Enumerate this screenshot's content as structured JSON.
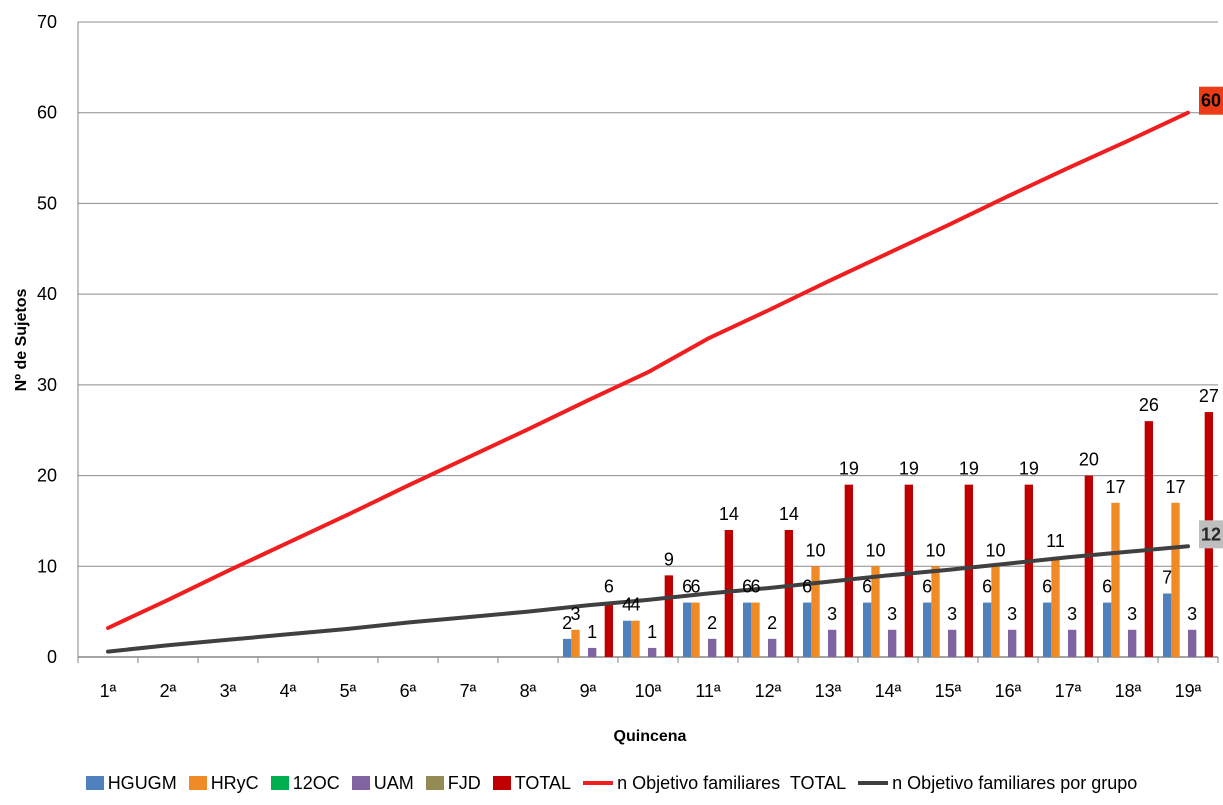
{
  "chart_data": {
    "type": "bar",
    "xlabel": "Quincena",
    "ylabel": "Nº de Sujetos",
    "ylim": [
      0,
      70
    ],
    "yticks": [
      0,
      10,
      20,
      30,
      40,
      50,
      60,
      70
    ],
    "grid": true,
    "legend": "bottom",
    "categories": [
      "1ª",
      "2ª",
      "3ª",
      "4ª",
      "5ª",
      "6ª",
      "7ª",
      "8ª",
      "9ª",
      "10ª",
      "11ª",
      "12ª",
      "13ª",
      "14ª",
      "15ª",
      "16ª",
      "17ª",
      "18ª",
      "19ª"
    ],
    "series": [
      {
        "name": "HGUGM",
        "kind": "bar",
        "color": "#4f81bd",
        "values": [
          null,
          null,
          null,
          null,
          null,
          null,
          null,
          null,
          2,
          4,
          6,
          6,
          6,
          6,
          6,
          6,
          6,
          6,
          7
        ]
      },
      {
        "name": "HRyC",
        "kind": "bar",
        "color": "#f08a24",
        "values": [
          null,
          null,
          null,
          null,
          null,
          null,
          null,
          null,
          3,
          4,
          6,
          6,
          10,
          10,
          10,
          10,
          11,
          17,
          17
        ]
      },
      {
        "name": "12OC",
        "kind": "bar",
        "color": "#00b050",
        "values": [
          null,
          null,
          null,
          null,
          null,
          null,
          null,
          null,
          null,
          null,
          null,
          null,
          null,
          null,
          null,
          null,
          null,
          null,
          null
        ]
      },
      {
        "name": "UAM",
        "kind": "bar",
        "color": "#8064a2",
        "values": [
          null,
          null,
          null,
          null,
          null,
          null,
          null,
          null,
          1,
          1,
          2,
          2,
          3,
          3,
          3,
          3,
          3,
          3,
          3
        ]
      },
      {
        "name": "FJD",
        "kind": "bar",
        "color": "#948a54",
        "values": [
          null,
          null,
          null,
          null,
          null,
          null,
          null,
          null,
          null,
          null,
          null,
          null,
          null,
          null,
          null,
          null,
          null,
          null,
          null
        ]
      },
      {
        "name": "TOTAL",
        "kind": "bar",
        "color": "#c00000",
        "values": [
          null,
          null,
          null,
          null,
          null,
          null,
          null,
          null,
          6,
          9,
          14,
          14,
          19,
          19,
          19,
          19,
          20,
          26,
          27
        ]
      },
      {
        "name": "n Objetivo familiares  TOTAL",
        "kind": "line",
        "color": "#f01e1e",
        "values": [
          3.2,
          6.3,
          9.5,
          12.6,
          15.7,
          18.9,
          22.0,
          25.1,
          28.3,
          31.4,
          35.1,
          38.2,
          41.4,
          44.5,
          47.6,
          50.8,
          53.9,
          56.9,
          60.0
        ],
        "last_label": "60",
        "label_fill": "#ea3c16",
        "label_color": "#000000"
      },
      {
        "name": "n Objetivo familiares por grupo",
        "kind": "line",
        "color": "#404040",
        "values": [
          0.6,
          1.3,
          1.9,
          2.5,
          3.1,
          3.8,
          4.4,
          5.0,
          5.7,
          6.3,
          7.0,
          7.6,
          8.3,
          9.0,
          9.6,
          10.3,
          11.0,
          11.6,
          12.2
        ],
        "last_label": "12",
        "label_fill": "#bfbfbf",
        "label_color": "#262626"
      }
    ]
  }
}
